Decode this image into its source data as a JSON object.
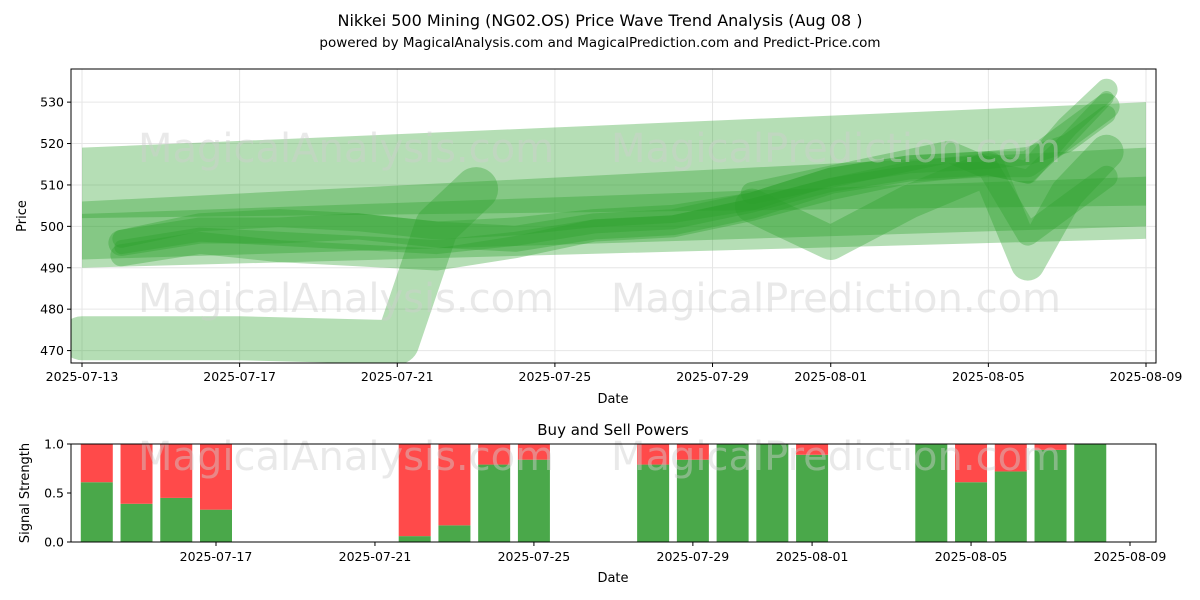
{
  "title": "Nikkei 500 Mining (NG02.OS) Price Wave Trend Analysis (Aug 08 )",
  "subtitle": "powered by MagicalAnalysis.com and MagicalPrediction.com and Predict-Price.com",
  "watermarks": [
    "MagicalAnalysis.com",
    "MagicalPrediction.com"
  ],
  "colors": {
    "wave": "#2ca02c",
    "buy": "#4aa84a",
    "sell": "#ff4a4a",
    "grid": "#e6e6e6"
  },
  "chart_data": [
    {
      "type": "area",
      "title": "",
      "xlabel": "Date",
      "ylabel": "Price",
      "x_ticks": [
        "2025-07-13",
        "2025-07-17",
        "2025-07-21",
        "2025-07-25",
        "2025-07-29",
        "2025-08-01",
        "2025-08-05",
        "2025-08-09"
      ],
      "y_ticks": [
        470,
        480,
        490,
        500,
        510,
        520,
        530
      ],
      "xlim": [
        "2025-07-13",
        "2025-08-09"
      ],
      "ylim": [
        467,
        538
      ],
      "grid": true,
      "bands": [
        {
          "start": "2025-07-13",
          "end": "2025-08-09",
          "start_low": 490,
          "start_high": 519,
          "end_low": 497,
          "end_high": 530
        },
        {
          "start": "2025-07-13",
          "end": "2025-08-09",
          "start_low": 502,
          "start_high": 506,
          "end_low": 505,
          "end_high": 519
        },
        {
          "start": "2025-07-13",
          "end": "2025-08-09",
          "start_low": 492,
          "start_high": 503,
          "end_low": 500,
          "end_high": 512
        }
      ],
      "series": [
        {
          "x": [
            "2025-07-13",
            "2025-07-17",
            "2025-07-21",
            "2025-07-22",
            "2025-07-23"
          ],
          "y": [
            473,
            473,
            472,
            500,
            509
          ]
        },
        {
          "x": [
            "2025-07-14",
            "2025-07-16",
            "2025-07-18",
            "2025-07-20",
            "2025-07-22",
            "2025-07-24",
            "2025-07-26",
            "2025-07-28",
            "2025-07-30",
            "2025-08-01",
            "2025-08-03",
            "2025-08-05",
            "2025-08-06",
            "2025-08-07",
            "2025-08-08"
          ],
          "y": [
            496,
            499,
            499,
            500,
            498,
            497,
            500,
            501,
            505,
            511,
            514,
            515,
            515,
            522,
            529
          ]
        },
        {
          "x": [
            "2025-07-14",
            "2025-07-16",
            "2025-07-18",
            "2025-07-20",
            "2025-07-22",
            "2025-07-24",
            "2025-07-26",
            "2025-07-28",
            "2025-07-30",
            "2025-08-01",
            "2025-08-03",
            "2025-08-05",
            "2025-08-06",
            "2025-08-07",
            "2025-08-08"
          ],
          "y": [
            493,
            496,
            494,
            493,
            492,
            495,
            499,
            500,
            504,
            509,
            513,
            515,
            513,
            524,
            533
          ]
        },
        {
          "x": [
            "2025-07-14",
            "2025-07-16",
            "2025-07-18",
            "2025-07-20",
            "2025-07-22",
            "2025-07-24",
            "2025-07-26",
            "2025-07-28",
            "2025-07-30",
            "2025-08-01",
            "2025-08-03",
            "2025-08-05",
            "2025-08-06",
            "2025-08-07",
            "2025-08-08"
          ],
          "y": [
            497,
            501,
            502,
            501,
            499,
            500,
            502,
            503,
            506,
            512,
            515,
            516,
            517,
            520,
            527
          ]
        },
        {
          "x": [
            "2025-07-14",
            "2025-07-16",
            "2025-07-18",
            "2025-07-20",
            "2025-07-22",
            "2025-07-24",
            "2025-07-26",
            "2025-07-28",
            "2025-07-30",
            "2025-08-01",
            "2025-08-03",
            "2025-08-05",
            "2025-08-06",
            "2025-08-07",
            "2025-08-08"
          ],
          "y": [
            495,
            498,
            497,
            496,
            495,
            497,
            500,
            501,
            505,
            510,
            513,
            514,
            512,
            521,
            531
          ]
        },
        {
          "x": [
            "2025-07-30",
            "2025-08-01",
            "2025-08-03",
            "2025-08-04",
            "2025-08-05",
            "2025-08-06",
            "2025-08-07",
            "2025-08-08"
          ],
          "y": [
            508,
            512,
            516,
            518,
            514,
            498,
            505,
            512
          ]
        },
        {
          "x": [
            "2025-07-30",
            "2025-08-01",
            "2025-08-03",
            "2025-08-05",
            "2025-08-06",
            "2025-08-07",
            "2025-08-08"
          ],
          "y": [
            505,
            496,
            506,
            514,
            491,
            508,
            518
          ]
        }
      ]
    },
    {
      "type": "bar",
      "title": "Buy and Sell Powers",
      "xlabel": "Date",
      "ylabel": "Signal Strength",
      "x_ticks": [
        "2025-07-17",
        "2025-07-21",
        "2025-07-25",
        "2025-07-29",
        "2025-08-01",
        "2025-08-05",
        "2025-08-09"
      ],
      "y_ticks": [
        "0.0",
        "0.5",
        "1.0"
      ],
      "xlim": [
        "2025-07-12",
        "2025-08-10"
      ],
      "ylim": [
        0,
        1
      ],
      "categories": [
        "2025-07-14",
        "2025-07-15",
        "2025-07-16",
        "2025-07-17",
        "2025-07-22",
        "2025-07-23",
        "2025-07-24",
        "2025-07-25",
        "2025-07-28",
        "2025-07-29",
        "2025-07-30",
        "2025-07-31",
        "2025-08-01",
        "2025-08-04",
        "2025-08-05",
        "2025-08-06",
        "2025-08-07",
        "2025-08-08"
      ],
      "series": [
        {
          "values": [
            0.61,
            0.39,
            0.45,
            0.33,
            0.06,
            0.17,
            0.79,
            0.84,
            0.79,
            0.84,
            1.0,
            1.0,
            0.89,
            1.0,
            0.61,
            0.72,
            0.94,
            1.0
          ]
        },
        {
          "values": [
            0.39,
            0.61,
            0.55,
            0.67,
            0.94,
            0.83,
            0.21,
            0.16,
            0.21,
            0.16,
            0.0,
            0.0,
            0.11,
            0.0,
            0.39,
            0.28,
            0.06,
            0.0
          ]
        }
      ]
    }
  ]
}
